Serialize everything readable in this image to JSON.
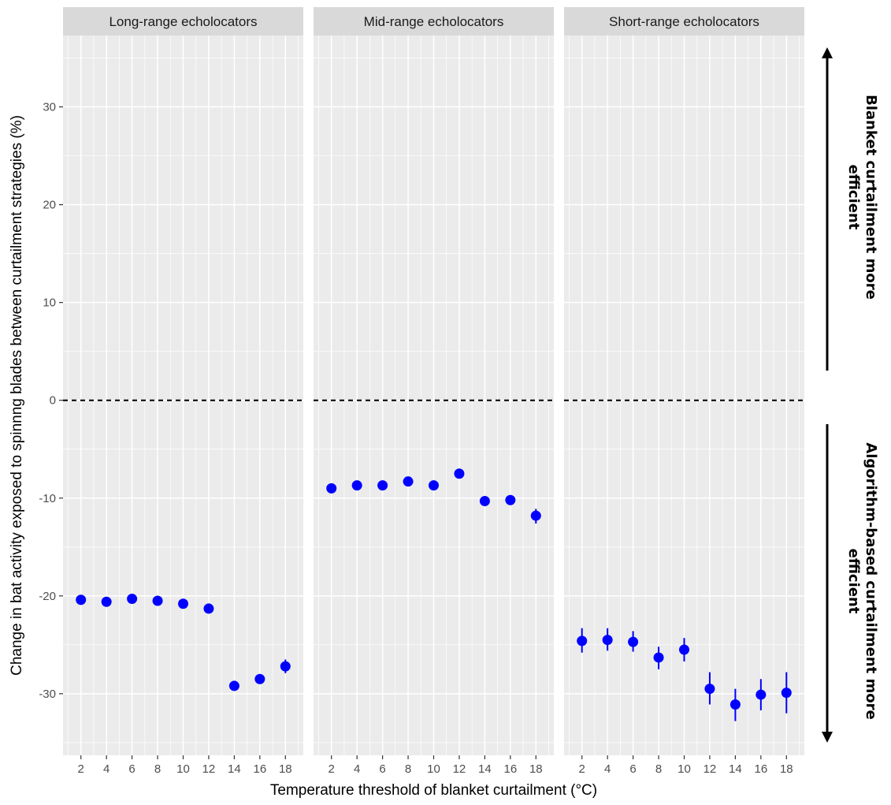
{
  "chart_data": {
    "type": "scatter",
    "subtype": "faceted point-range",
    "x_axis_title": "Temperature threshold of blanket curtailment (°C)",
    "y_axis_title": "Change in bat activity exposed to spinnng blades between curtailment strategies (%)",
    "x_ticks": [
      2,
      4,
      6,
      8,
      10,
      12,
      14,
      16,
      18
    ],
    "y_ticks": [
      30,
      20,
      10,
      0,
      -10,
      -20,
      -30
    ],
    "xlim": [
      0.6,
      19.4
    ],
    "ylim": [
      -36.3,
      37.3
    ],
    "reference_line": {
      "y": 0,
      "style": "dashed"
    },
    "grid": true,
    "colors": {
      "points": "#0000ff",
      "panel_bg": "#ebebeb",
      "strip_bg": "#d9d9d9",
      "grid": "#ffffff"
    },
    "facets": [
      {
        "label": "Long-range echolocators",
        "points": [
          {
            "x": 2,
            "y": -20.4,
            "lo": -20.7,
            "hi": -20.1
          },
          {
            "x": 4,
            "y": -20.6,
            "lo": -20.9,
            "hi": -20.3
          },
          {
            "x": 6,
            "y": -20.3,
            "lo": -20.6,
            "hi": -20.0
          },
          {
            "x": 8,
            "y": -20.5,
            "lo": -20.8,
            "hi": -20.2
          },
          {
            "x": 10,
            "y": -20.8,
            "lo": -21.1,
            "hi": -20.5
          },
          {
            "x": 12,
            "y": -21.3,
            "lo": -21.6,
            "hi": -21.0
          },
          {
            "x": 14,
            "y": -29.2,
            "lo": -29.6,
            "hi": -28.8
          },
          {
            "x": 16,
            "y": -28.5,
            "lo": -28.9,
            "hi": -28.1
          },
          {
            "x": 18,
            "y": -27.2,
            "lo": -27.9,
            "hi": -26.5
          }
        ]
      },
      {
        "label": "Mid-range echolocators",
        "points": [
          {
            "x": 2,
            "y": -9.0,
            "lo": -9.3,
            "hi": -8.7
          },
          {
            "x": 4,
            "y": -8.7,
            "lo": -9.0,
            "hi": -8.4
          },
          {
            "x": 6,
            "y": -8.7,
            "lo": -9.0,
            "hi": -8.4
          },
          {
            "x": 8,
            "y": -8.3,
            "lo": -8.6,
            "hi": -8.0
          },
          {
            "x": 10,
            "y": -8.7,
            "lo": -9.0,
            "hi": -8.4
          },
          {
            "x": 12,
            "y": -7.5,
            "lo": -7.8,
            "hi": -7.2
          },
          {
            "x": 14,
            "y": -10.3,
            "lo": -10.6,
            "hi": -10.0
          },
          {
            "x": 16,
            "y": -10.2,
            "lo": -10.5,
            "hi": -9.9
          },
          {
            "x": 18,
            "y": -11.8,
            "lo": -12.6,
            "hi": -11.1
          }
        ]
      },
      {
        "label": "Short-range echolocators",
        "points": [
          {
            "x": 2,
            "y": -24.6,
            "lo": -25.8,
            "hi": -23.3
          },
          {
            "x": 4,
            "y": -24.5,
            "lo": -25.6,
            "hi": -23.3
          },
          {
            "x": 6,
            "y": -24.7,
            "lo": -25.7,
            "hi": -23.6
          },
          {
            "x": 8,
            "y": -26.3,
            "lo": -27.5,
            "hi": -25.2
          },
          {
            "x": 10,
            "y": -25.5,
            "lo": -26.7,
            "hi": -24.3
          },
          {
            "x": 12,
            "y": -29.5,
            "lo": -31.1,
            "hi": -27.8
          },
          {
            "x": 14,
            "y": -31.1,
            "lo": -32.8,
            "hi": -29.5
          },
          {
            "x": 16,
            "y": -30.1,
            "lo": -31.7,
            "hi": -28.5
          },
          {
            "x": 18,
            "y": -29.9,
            "lo": -32.0,
            "hi": -27.8
          }
        ]
      }
    ],
    "side_annotations": {
      "upper": "Blanket curtailment more efficient",
      "lower": "Algorithm-based curtailment more efficient"
    }
  }
}
